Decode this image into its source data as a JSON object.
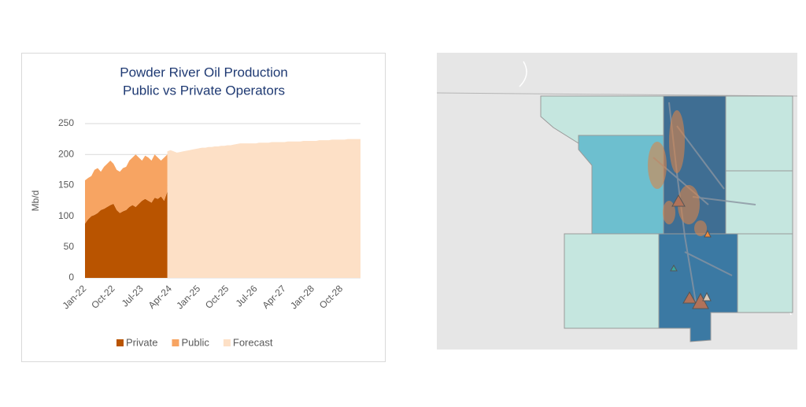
{
  "chart_data": {
    "type": "area",
    "title": "Powder River Oil Production",
    "subtitle": "Public vs Private Operators",
    "ylabel": "Mb/d",
    "ylim": [
      0,
      250
    ],
    "yticks": [
      0,
      50,
      100,
      150,
      200,
      250
    ],
    "grid": true,
    "legend": "bottom",
    "categories": [
      "Jan-22",
      null,
      null,
      null,
      null,
      null,
      null,
      null,
      null,
      "Oct-22",
      null,
      null,
      null,
      null,
      null,
      null,
      null,
      null,
      "Jul-23",
      null,
      null,
      null,
      null,
      null,
      null,
      null,
      null,
      "Apr-24",
      null,
      null,
      null,
      null,
      null,
      null,
      null,
      null,
      "Jan-25",
      null,
      null,
      null,
      null,
      null,
      null,
      null,
      null,
      "Oct-25",
      null,
      null,
      null,
      null,
      null,
      null,
      null,
      null,
      "Jul-26",
      null,
      null,
      null,
      null,
      null,
      null,
      null,
      null,
      "Apr-27",
      null,
      null,
      null,
      null,
      null,
      null,
      null,
      null,
      "Jan-28",
      null,
      null,
      null,
      null,
      null,
      null,
      null,
      null,
      "Oct-28",
      null,
      null,
      null,
      null,
      null,
      null
    ],
    "series": [
      {
        "name": "Private",
        "color": "#b95400",
        "stacked": true,
        "values": [
          88,
          95,
          100,
          102,
          105,
          110,
          112,
          115,
          118,
          120,
          110,
          105,
          108,
          110,
          115,
          118,
          115,
          120,
          125,
          128,
          125,
          122,
          130,
          128,
          132,
          125,
          140,
          null,
          null,
          null,
          null,
          null,
          null,
          null,
          null,
          null,
          null,
          null,
          null,
          null,
          null,
          null,
          null,
          null,
          null,
          null,
          null,
          null,
          null,
          null,
          null,
          null,
          null,
          null,
          null,
          null,
          null,
          null,
          null,
          null,
          null,
          null,
          null,
          null,
          null,
          null,
          null,
          null,
          null,
          null,
          null,
          null,
          null,
          null,
          null,
          null,
          null,
          null,
          null,
          null,
          null,
          null,
          null,
          null,
          null,
          null,
          null,
          null
        ]
      },
      {
        "name": "Public",
        "color": "#f7a462",
        "stacked": true,
        "values": [
          70,
          67,
          65,
          73,
          73,
          62,
          68,
          70,
          72,
          65,
          65,
          67,
          70,
          70,
          75,
          77,
          85,
          75,
          65,
          70,
          70,
          68,
          70,
          67,
          58,
          70,
          60,
          null,
          null,
          null,
          null,
          null,
          null,
          null,
          null,
          null,
          null,
          null,
          null,
          null,
          null,
          null,
          null,
          null,
          null,
          null,
          null,
          null,
          null,
          null,
          null,
          null,
          null,
          null,
          null,
          null,
          null,
          null,
          null,
          null,
          null,
          null,
          null,
          null,
          null,
          null,
          null,
          null,
          null,
          null,
          null,
          null,
          null,
          null,
          null,
          null,
          null,
          null,
          null,
          null,
          null,
          null,
          null,
          null,
          null,
          null,
          null,
          null
        ]
      },
      {
        "name": "Forecast",
        "color": "#fde0c6",
        "stacked": false,
        "values": [
          null,
          null,
          null,
          null,
          null,
          null,
          null,
          null,
          null,
          null,
          null,
          null,
          null,
          null,
          null,
          null,
          null,
          null,
          null,
          null,
          null,
          null,
          null,
          null,
          null,
          null,
          205,
          207,
          205,
          203,
          204,
          205,
          206,
          207,
          208,
          209,
          210,
          211,
          211,
          212,
          212,
          213,
          213,
          214,
          214,
          215,
          215,
          216,
          217,
          218,
          218,
          218,
          218,
          218,
          218,
          219,
          219,
          219,
          219,
          220,
          220,
          220,
          220,
          220,
          221,
          221,
          221,
          221,
          221,
          222,
          222,
          222,
          222,
          222,
          223,
          223,
          223,
          223,
          224,
          224,
          224,
          224,
          224,
          225,
          225,
          225,
          225,
          225
        ]
      }
    ]
  }
}
